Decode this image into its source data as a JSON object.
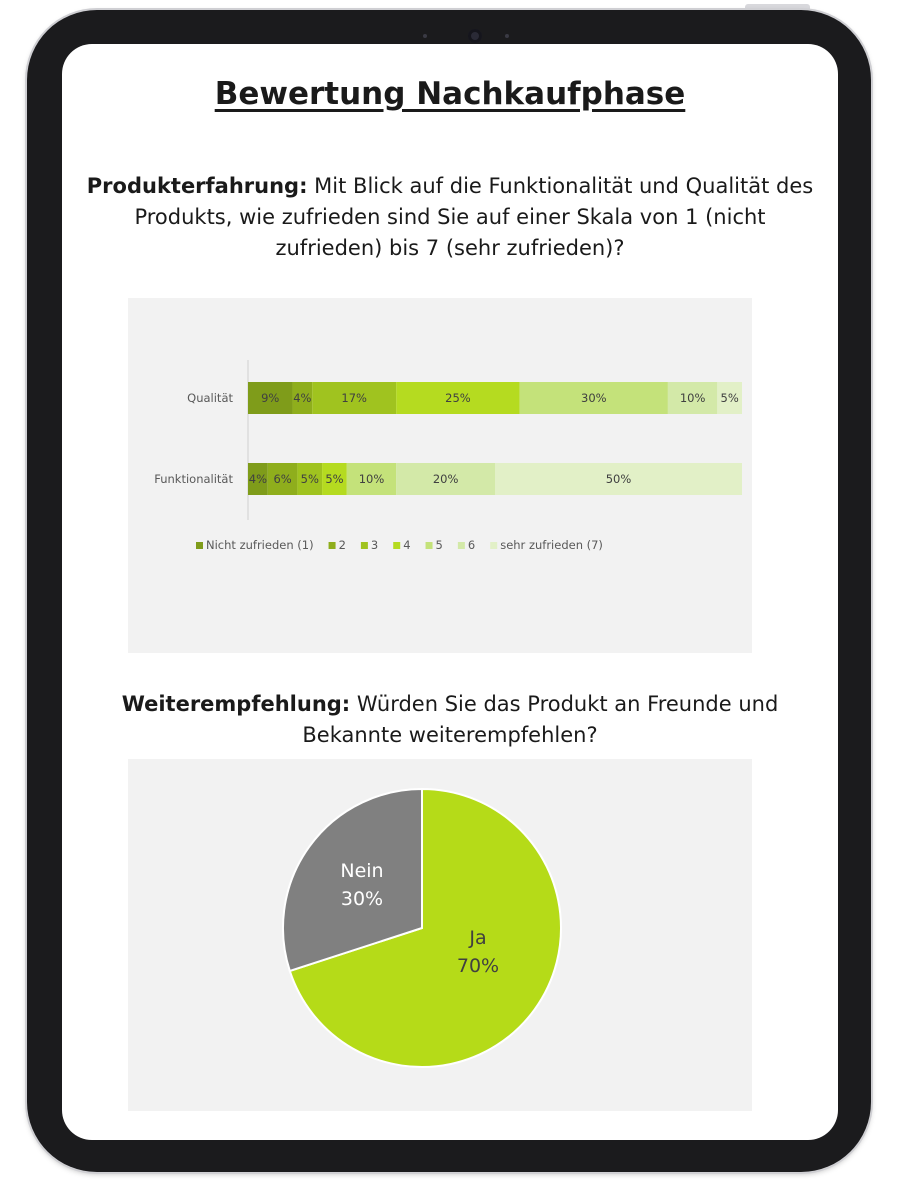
{
  "page": {
    "title": "Bewertung Nachkaufphase",
    "q1_bold": "Produkterfahrung:",
    "q1_text": " Mit Blick auf die Funktionalität und Qualität des Produkts, wie zufrieden sind Sie auf einer Skala von 1 (nicht zufrieden) bis 7 (sehr zufrieden)?",
    "q2_bold": "Weiterempfehlung:",
    "q2_text": " Würden Sie das Produkt an Freunde und Bekannte weiterempfehlen?"
  },
  "chart_data": [
    {
      "type": "bar",
      "orientation": "horizontal",
      "stacked": true,
      "percent_stacked": true,
      "categories": [
        "Qualität",
        "Funktionalität"
      ],
      "series": [
        {
          "name": "Nicht zufrieden (1)",
          "values": [
            9,
            4
          ],
          "labels": [
            "9%",
            "4%"
          ],
          "color": "#7f9c1a"
        },
        {
          "name": "2",
          "values": [
            4,
            6
          ],
          "labels": [
            "4%",
            "6%"
          ],
          "color": "#8fae1c"
        },
        {
          "name": "3",
          "values": [
            17,
            5
          ],
          "labels": [
            "17%",
            "5%"
          ],
          "color": "#a0c31f"
        },
        {
          "name": "4",
          "values": [
            25,
            5
          ],
          "labels": [
            "25%",
            "5%"
          ],
          "color": "#b5db20"
        },
        {
          "name": "5",
          "values": [
            30,
            10
          ],
          "labels": [
            "30%",
            "10%"
          ],
          "color": "#c4e27a"
        },
        {
          "name": "6",
          "values": [
            10,
            20
          ],
          "labels": [
            "10%",
            "20%"
          ],
          "color": "#d3e9a8"
        },
        {
          "name": "sehr zufrieden (7)",
          "values": [
            5,
            50
          ],
          "labels": [
            "5%",
            "50%"
          ],
          "color": "#e2f0c7"
        }
      ],
      "legend": "bottom",
      "grid": false
    },
    {
      "type": "pie",
      "slices": [
        {
          "label": "Ja",
          "value": 70,
          "display": "70%",
          "color": "#b5db18"
        },
        {
          "label": "Nein",
          "value": 30,
          "display": "30%",
          "color": "#808080"
        }
      ]
    }
  ]
}
